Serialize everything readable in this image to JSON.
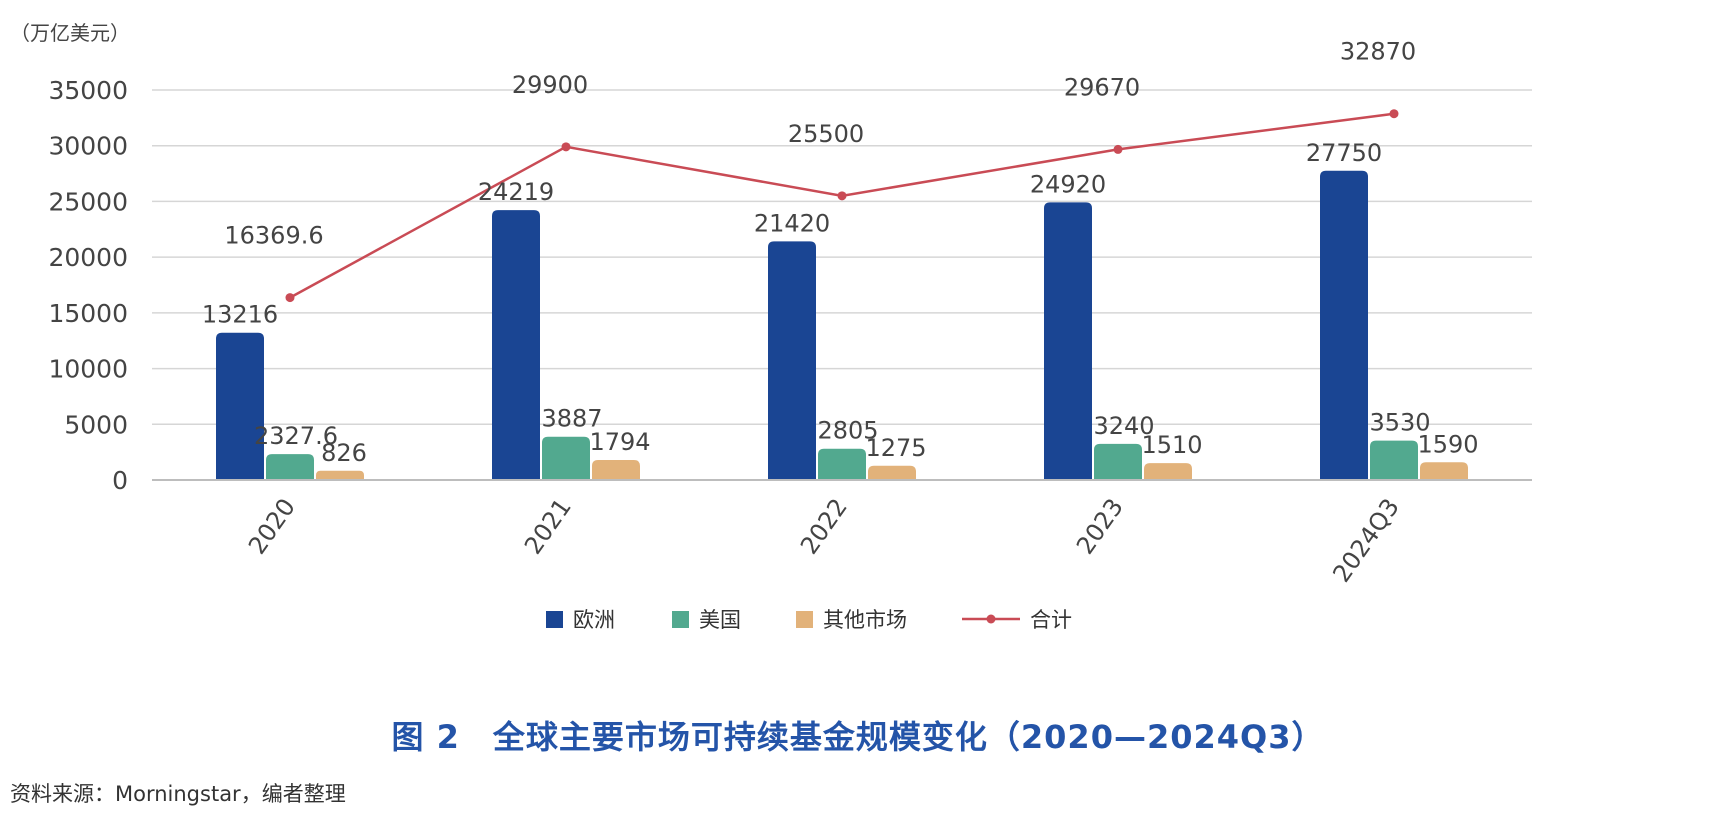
{
  "colors": {
    "europe": "#1a4593",
    "usa": "#52a98f",
    "other": "#e2b27a",
    "total": "#c94b55",
    "grid": "#d6d6d6",
    "axis": "#555555",
    "text": "#444444",
    "caption": "#2454a8"
  },
  "chart_data": {
    "type": "bar",
    "unit_label": "（万亿美元）",
    "categories": [
      "2020",
      "2021",
      "2022",
      "2023",
      "2024Q3"
    ],
    "ylim": [
      0,
      35000
    ],
    "yticks": [
      "0",
      "5000",
      "10000",
      "15000",
      "20000",
      "25000",
      "30000",
      "35000"
    ],
    "grid": true,
    "legend_position": "bottom",
    "series": [
      {
        "name": "欧洲",
        "kind": "bar",
        "values": [
          13216,
          24219,
          21420,
          24920,
          27750
        ],
        "labels": [
          "13216",
          "24219",
          "21420",
          "24920",
          "27750"
        ]
      },
      {
        "name": "美国",
        "kind": "bar",
        "values": [
          2327.6,
          3887,
          2805,
          3240,
          3530
        ],
        "labels": [
          "2327.6",
          "3887",
          "2805",
          "3240",
          "3530"
        ]
      },
      {
        "name": "其他市场",
        "kind": "bar",
        "values": [
          826,
          1794,
          1275,
          1510,
          1590
        ],
        "labels": [
          "826",
          "1794",
          "1275",
          "1510",
          "1590"
        ]
      },
      {
        "name": "合计",
        "kind": "line",
        "values": [
          16369.6,
          29900,
          25500,
          29670,
          32870
        ],
        "labels": [
          "16369.6",
          "29900",
          "25500",
          "29670",
          "32870"
        ]
      }
    ]
  },
  "caption": "图 2　全球主要市场可持续基金规模变化（2020—2024Q3）",
  "source": "资料来源：Morningstar，编者整理"
}
